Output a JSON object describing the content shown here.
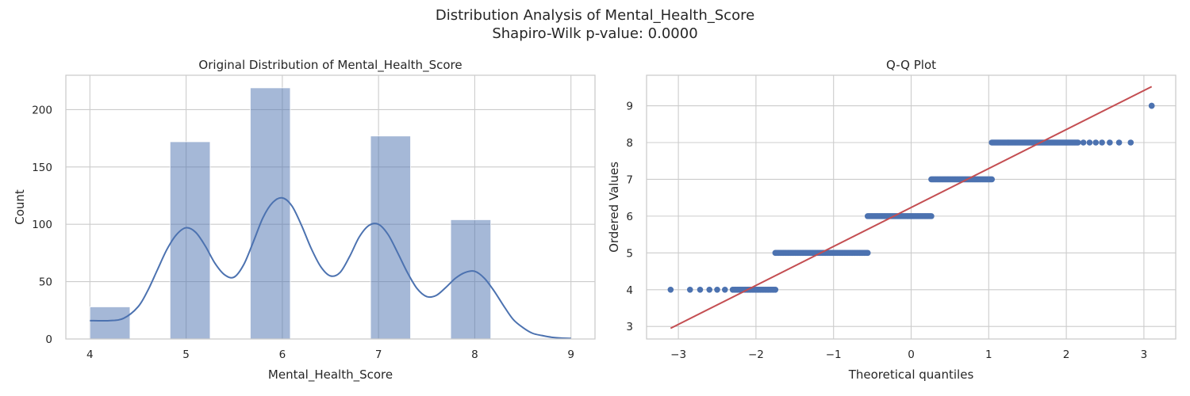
{
  "figure": {
    "title_line1": "Distribution Analysis of Mental_Health_Score",
    "title_line2": "Shapiro-Wilk p-value: 0.0000"
  },
  "colors": {
    "bar": "#4c72b0",
    "kde": "#4c72b0",
    "points": "#4c72b0",
    "fit_line": "#c44e52",
    "grid": "#cccccc"
  },
  "chart_data": [
    {
      "type": "bar",
      "title": "Original Distribution of Mental_Health_Score",
      "xlabel": "Mental_Health_Score",
      "ylabel": "Count",
      "xlim": [
        3.75,
        9.25
      ],
      "ylim": [
        0,
        230
      ],
      "xticks": [
        4,
        5,
        6,
        7,
        8,
        9
      ],
      "yticks": [
        0,
        50,
        100,
        150,
        200
      ],
      "grid": true,
      "bars": [
        {
          "x0": 4.0,
          "x1": 4.417,
          "value": 28
        },
        {
          "x0": 4.833,
          "x1": 5.25,
          "value": 172
        },
        {
          "x0": 5.667,
          "x1": 6.083,
          "value": 219
        },
        {
          "x0": 6.917,
          "x1": 7.333,
          "value": 177
        },
        {
          "x0": 7.75,
          "x1": 8.167,
          "value": 104
        }
      ],
      "kde": {
        "x": [
          4.0,
          4.2,
          4.35,
          4.5,
          4.6,
          4.7,
          4.8,
          4.9,
          5.0,
          5.1,
          5.2,
          5.3,
          5.4,
          5.5,
          5.6,
          5.7,
          5.8,
          5.9,
          6.0,
          6.1,
          6.2,
          6.3,
          6.4,
          6.5,
          6.6,
          6.7,
          6.8,
          6.9,
          7.0,
          7.1,
          7.2,
          7.3,
          7.4,
          7.5,
          7.6,
          7.7,
          7.8,
          7.9,
          8.0,
          8.1,
          8.2,
          8.3,
          8.4,
          8.5,
          8.6,
          8.7,
          8.8,
          8.9,
          9.0
        ],
        "y": [
          16,
          16,
          18,
          28,
          42,
          60,
          78,
          91,
          97,
          93,
          81,
          66,
          56,
          54,
          65,
          85,
          106,
          119,
          123,
          116,
          99,
          79,
          63,
          55,
          58,
          72,
          89,
          99,
          100,
          91,
          75,
          58,
          44,
          37,
          38,
          45,
          53,
          58,
          59,
          53,
          42,
          29,
          17,
          10,
          5,
          3,
          1.5,
          0.8,
          0.5
        ]
      }
    },
    {
      "type": "scatter",
      "title": "Q-Q Plot",
      "xlabel": "Theoretical quantiles",
      "ylabel": "Ordered Values",
      "xlim": [
        -3.41,
        3.41
      ],
      "ylim": [
        2.66,
        9.83
      ],
      "xticks": [
        -3,
        -2,
        -1,
        0,
        1,
        2,
        3
      ],
      "xtick_labels": [
        "−3",
        "−2",
        "−1",
        "0",
        "1",
        "2",
        "3"
      ],
      "yticks": [
        3,
        4,
        5,
        6,
        7,
        8,
        9
      ],
      "grid": true,
      "fit_line": {
        "x": [
          -3.1,
          3.1
        ],
        "y": [
          2.95,
          9.52
        ]
      },
      "groups": [
        {
          "value": 4,
          "x_from": -1.75,
          "x_to": -2.3,
          "extra_x": [
            -2.4,
            -2.5,
            -2.6,
            -2.72,
            -2.85,
            -3.1
          ]
        },
        {
          "value": 5,
          "x_from": -1.75,
          "x_to": -0.56,
          "extra_x": []
        },
        {
          "value": 6,
          "x_from": -0.56,
          "x_to": 0.26,
          "extra_x": []
        },
        {
          "value": 7,
          "x_from": 0.26,
          "x_to": 1.04,
          "extra_x": []
        },
        {
          "value": 8,
          "x_from": 1.04,
          "x_to": 2.15,
          "extra_x": [
            2.22,
            2.3,
            2.38,
            2.46,
            2.56,
            2.68,
            2.83
          ]
        },
        {
          "value": 9,
          "x_from": 3.1,
          "x_to": 3.1,
          "extra_x": []
        }
      ]
    }
  ]
}
